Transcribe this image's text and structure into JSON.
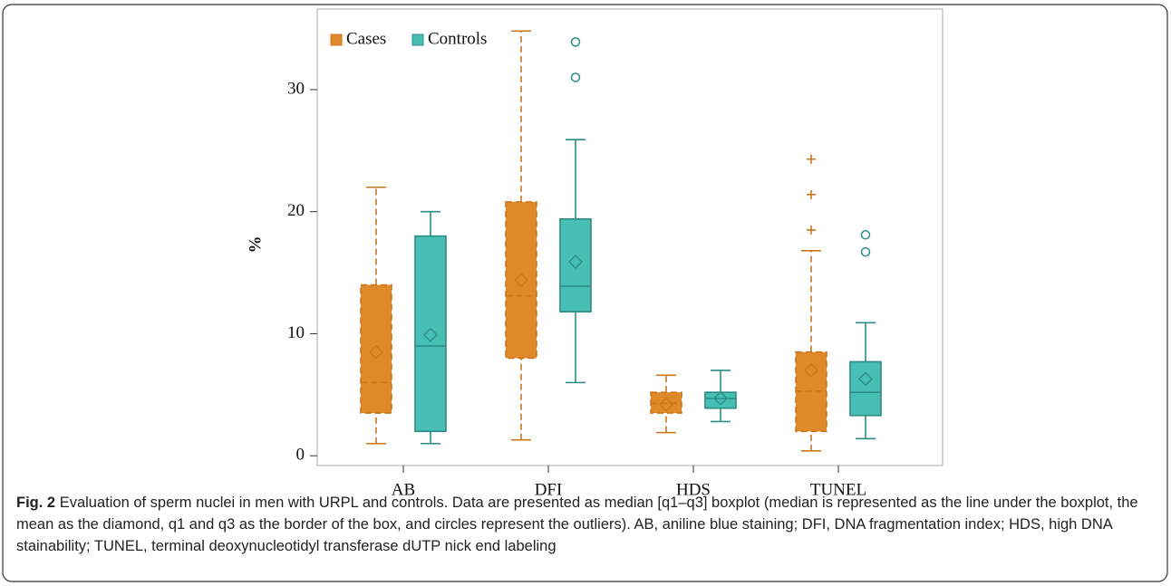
{
  "chart_data": {
    "type": "box",
    "y_label": "%",
    "categories": [
      "AB",
      "DFI",
      "HDS",
      "TUNEL"
    ],
    "ylim": [
      -0.8,
      36.6
    ],
    "yticks": [
      0,
      10,
      20,
      30
    ],
    "legend": "top-left",
    "series": [
      {
        "name": "Cases",
        "color": "#e0892b",
        "stroke": "#c9771d",
        "dashed": true,
        "outlier_marker": "plus",
        "boxes": [
          {
            "min": 1,
            "q1": 3.5,
            "median": 6,
            "q3": 14,
            "max": 22,
            "mean": 8.5,
            "outliers": []
          },
          {
            "min": 1.3,
            "q1": 8,
            "median": 13.1,
            "q3": 20.8,
            "max": 34.8,
            "mean": 14.4,
            "outliers": []
          },
          {
            "min": 1.9,
            "q1": 3.5,
            "median": 4.3,
            "q3": 5.2,
            "max": 6.6,
            "mean": 4.2,
            "outliers": []
          },
          {
            "min": 0.4,
            "q1": 2,
            "median": 5.3,
            "q3": 8.5,
            "max": 16.8,
            "mean": 7,
            "outliers": [
              18.5,
              21.4,
              24.3
            ]
          }
        ]
      },
      {
        "name": "Controls",
        "color": "#47bfb5",
        "stroke": "#2b8c86",
        "dashed": false,
        "outlier_marker": "circle",
        "boxes": [
          {
            "min": 1,
            "q1": 2,
            "median": 9,
            "q3": 18,
            "max": 20,
            "mean": 9.9,
            "outliers": []
          },
          {
            "min": 6,
            "q1": 11.8,
            "median": 13.9,
            "q3": 19.4,
            "max": 25.9,
            "mean": 15.9,
            "outliers": [
              31,
              33.9
            ]
          },
          {
            "min": 2.8,
            "q1": 3.9,
            "median": 4.7,
            "q3": 5.2,
            "max": 7,
            "mean": 4.7,
            "outliers": []
          },
          {
            "min": 1.4,
            "q1": 3.3,
            "median": 5.2,
            "q3": 7.7,
            "max": 10.9,
            "mean": 6.3,
            "outliers": [
              16.7,
              18.1
            ]
          }
        ]
      }
    ]
  },
  "caption": {
    "label": "Fig. 2",
    "text": "Evaluation of sperm nuclei in men with URPL and controls. Data are presented as median [q1–q3] boxplot (median is represented as the line under the boxplot, the mean as the diamond, q1 and q3 as the border of the box, and circles represent the outliers). AB, aniline blue staining; DFI, DNA fragmentation index; HDS, high DNA stainability; TUNEL, terminal deoxynucleotidyl transferase dUTP nick end labeling"
  }
}
